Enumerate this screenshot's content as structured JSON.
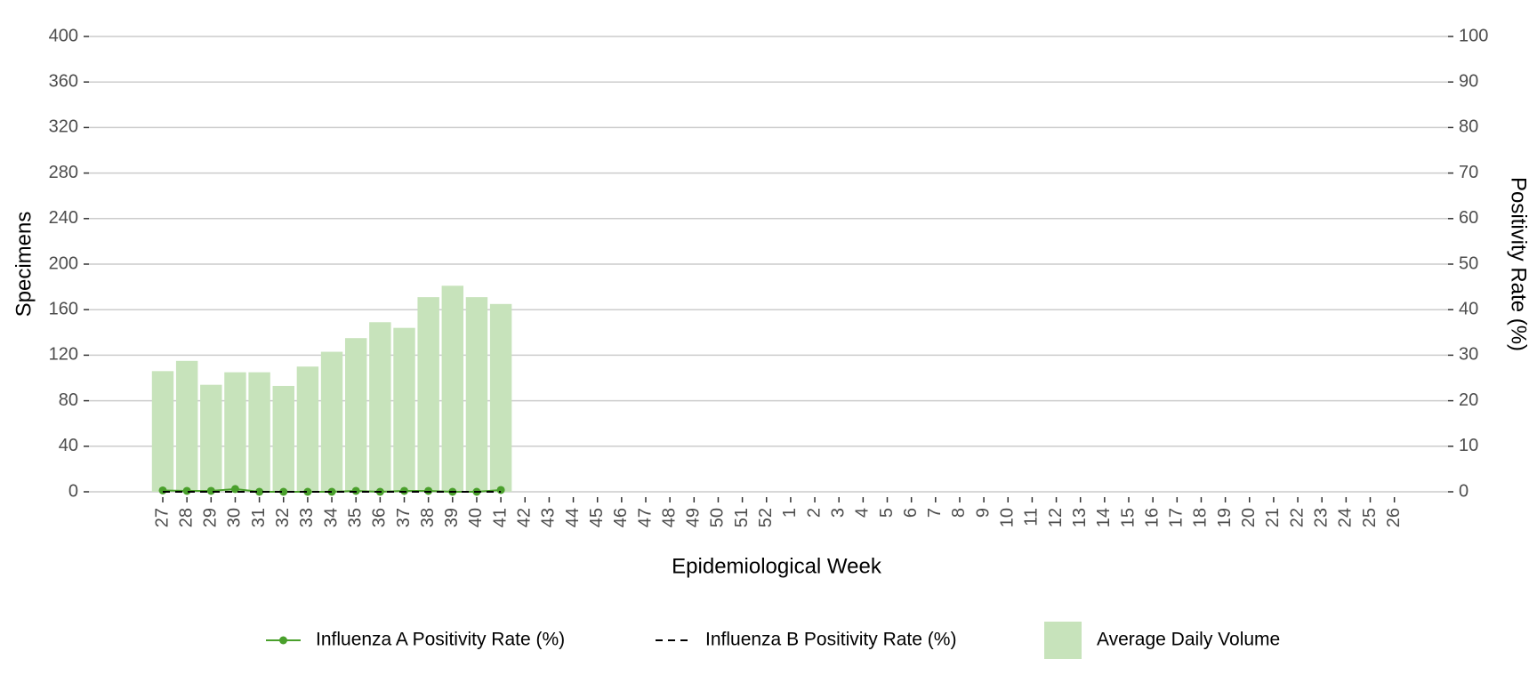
{
  "chart_data": {
    "type": "combo",
    "xlabel": "Epidemiological Week",
    "ylabel": "Specimens",
    "y2label": "Positivity Rate (%)",
    "categories": [
      "27",
      "28",
      "29",
      "30",
      "31",
      "32",
      "33",
      "34",
      "35",
      "36",
      "37",
      "38",
      "39",
      "40",
      "41",
      "42",
      "43",
      "44",
      "45",
      "46",
      "47",
      "48",
      "49",
      "50",
      "51",
      "52",
      "1",
      "2",
      "3",
      "4",
      "5",
      "6",
      "7",
      "8",
      "9",
      "10",
      "11",
      "12",
      "13",
      "14",
      "15",
      "16",
      "17",
      "18",
      "19",
      "20",
      "21",
      "22",
      "23",
      "24",
      "25",
      "26"
    ],
    "ylim": [
      0,
      400
    ],
    "yticks": [
      0,
      40,
      80,
      120,
      160,
      200,
      240,
      280,
      320,
      360,
      400
    ],
    "y2lim": [
      0,
      100
    ],
    "y2ticks": [
      0,
      10,
      20,
      30,
      40,
      50,
      60,
      70,
      80,
      90,
      100
    ],
    "grid": true,
    "legend": "bottom",
    "series": [
      {
        "name": "Influenza A Positivity Rate (%)",
        "type": "line",
        "axis": "y2",
        "color": "#4aa02c",
        "marker": true,
        "values": [
          0.3,
          0.2,
          0.2,
          0.6,
          0,
          0,
          0,
          0,
          0.2,
          0,
          0.2,
          0.2,
          0,
          0,
          0.4,
          null,
          null,
          null,
          null,
          null,
          null,
          null,
          null,
          null,
          null,
          null,
          null,
          null,
          null,
          null,
          null,
          null,
          null,
          null,
          null,
          null,
          null,
          null,
          null,
          null,
          null,
          null,
          null,
          null,
          null,
          null,
          null,
          null,
          null,
          null,
          null,
          null
        ]
      },
      {
        "name": "Influenza B Positivity Rate (%)",
        "type": "line",
        "axis": "y2",
        "color": "#000000",
        "dashed": true,
        "values": [
          0,
          0,
          0,
          0,
          0,
          0,
          0,
          0,
          0,
          0,
          0,
          0,
          0,
          0,
          0,
          null,
          null,
          null,
          null,
          null,
          null,
          null,
          null,
          null,
          null,
          null,
          null,
          null,
          null,
          null,
          null,
          null,
          null,
          null,
          null,
          null,
          null,
          null,
          null,
          null,
          null,
          null,
          null,
          null,
          null,
          null,
          null,
          null,
          null,
          null,
          null,
          null
        ]
      },
      {
        "name": "Average Daily Volume",
        "type": "bar",
        "color": "#c7e3bb",
        "values": [
          106,
          115,
          94,
          105,
          105,
          93,
          110,
          123,
          135,
          149,
          144,
          171,
          181,
          171,
          165,
          null,
          null,
          null,
          null,
          null,
          null,
          null,
          null,
          null,
          null,
          null,
          null,
          null,
          null,
          null,
          null,
          null,
          null,
          null,
          null,
          null,
          null,
          null,
          null,
          null,
          null,
          null,
          null,
          null,
          null,
          null,
          null,
          null,
          null,
          null,
          null,
          null
        ]
      }
    ]
  }
}
